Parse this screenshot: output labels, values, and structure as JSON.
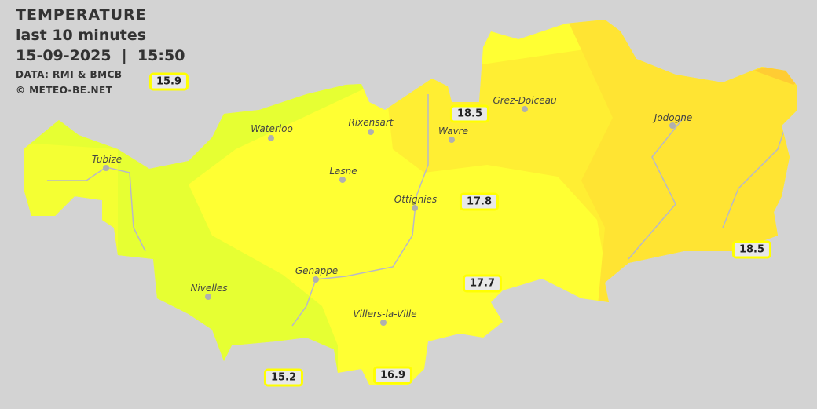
{
  "header": {
    "title": "TEMPERATURE",
    "subtitle": "last 10 minutes",
    "datetime": "15-09-2025  |  15:50",
    "source": "DATA: RMI & BMCB",
    "copyright": "© METEO-BE.NET"
  },
  "colors": {
    "background": "#d3d3d3",
    "band_15": "#e6ff33",
    "band_17": "#ffff33",
    "band_18": "#ffee33",
    "band_18_5": "#ffe433",
    "band_19": "#ffcc33",
    "value_border": "#ffff00"
  },
  "places": [
    {
      "name": "Waterloo"
    },
    {
      "name": "Rixensart"
    },
    {
      "name": "Grez-Doiceau"
    },
    {
      "name": "Tubize"
    },
    {
      "name": "Wavre"
    },
    {
      "name": "Jodogne"
    },
    {
      "name": "Lasne"
    },
    {
      "name": "Ottignies"
    },
    {
      "name": "Genappe"
    },
    {
      "name": "Nivelles"
    },
    {
      "name": "Villers-la-Ville"
    }
  ],
  "readings": [
    "15.9",
    "18.5",
    "17.8",
    "17.7",
    "18.5",
    "16.9",
    "15.2"
  ]
}
